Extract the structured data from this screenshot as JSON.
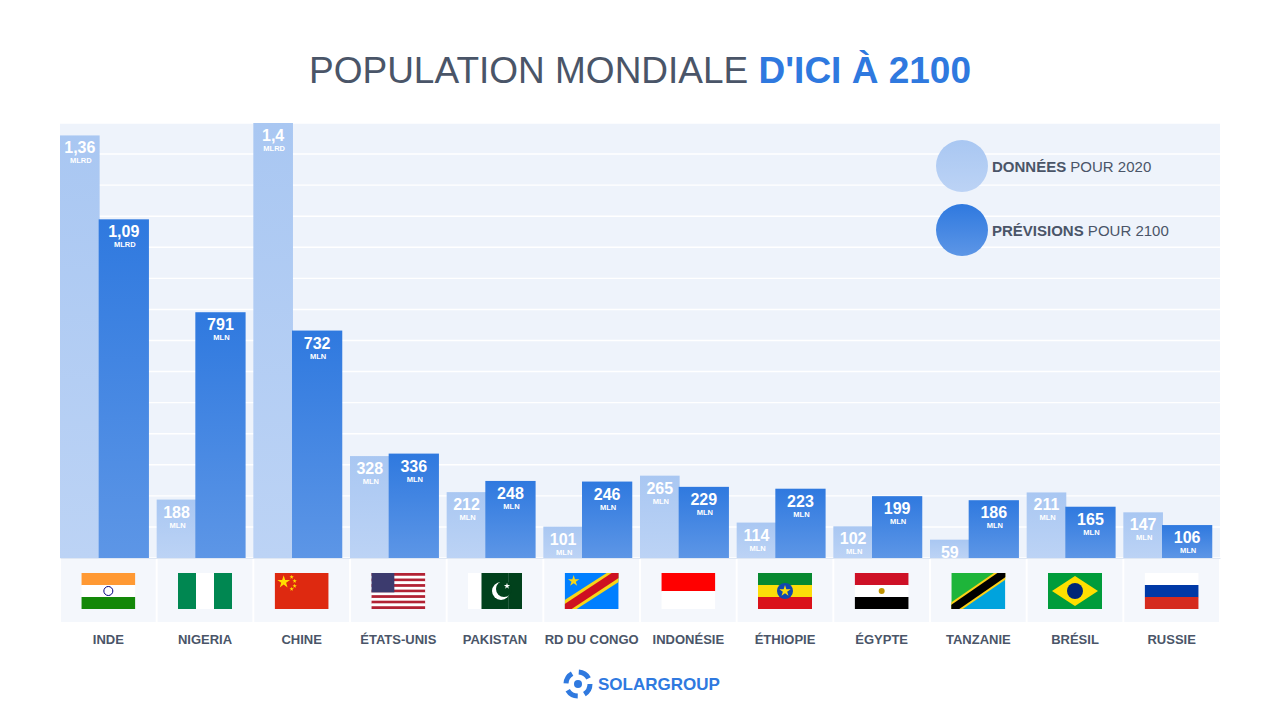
{
  "chart_data": {
    "type": "bar",
    "title": "POPULATION MONDIALE D'ICI À 2100",
    "categories": [
      "INDE",
      "NIGERIA",
      "CHINE",
      "ÉTATS-UNIS",
      "PAKISTAN",
      "RD DU CONGO",
      "INDONÉSIE",
      "ÉTHIOPIE",
      "ÉGYPTE",
      "TANZANIE",
      "BRÉSIL",
      "RUSSIE"
    ],
    "series": [
      {
        "name": "DONNÉES POUR 2020",
        "color": "#a9c7f2",
        "values": [
          1360,
          188,
          1400,
          328,
          212,
          101,
          265,
          114,
          102,
          59,
          211,
          147
        ],
        "value_labels": [
          "1,36 MLRD",
          "188 MLN",
          "1,4 MLRD",
          "328 MLN",
          "212 MLN",
          "101 MLN",
          "265 MLN",
          "114 MLN",
          "102 MLN",
          "59",
          "211 MLN",
          "147 MLN"
        ]
      },
      {
        "name": "PRÉVISIONS POUR 2100",
        "color": "#2f79df",
        "values": [
          1090,
          791,
          732,
          336,
          248,
          246,
          229,
          223,
          199,
          186,
          165,
          106
        ],
        "value_labels": [
          "1,09 MLRD",
          "791 MLN",
          "732 MLN",
          "336 MLN",
          "248 MLN",
          "246 MLN",
          "229 MLN",
          "223 MLN",
          "199 MLN",
          "186 MLN",
          "165 MLN",
          "106 MLN"
        ]
      }
    ],
    "ylim": [
      0,
      1400
    ],
    "yticks": [
      0,
      100,
      200,
      300,
      400,
      500,
      600,
      700,
      800,
      900,
      1000,
      1100,
      1200,
      1300,
      1400
    ],
    "grid": true,
    "tick_labels": "x",
    "data_labels": true,
    "legend": "top-right",
    "footer": "SOLARGROUP"
  }
}
